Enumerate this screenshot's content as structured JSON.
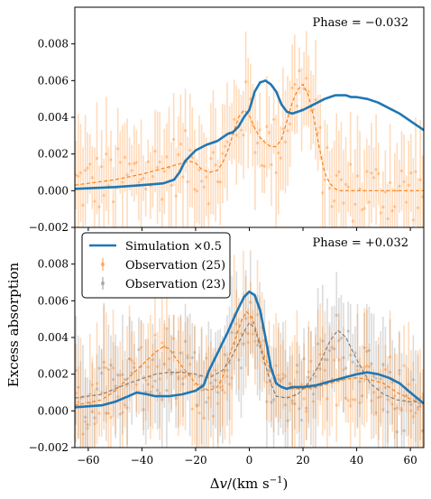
{
  "chart_data": [
    {
      "type": "line",
      "annotation": "Phase = −0.032",
      "xlim": [
        -65,
        65
      ],
      "ylim": [
        -0.002,
        0.01
      ],
      "yticks": [
        "−0.002",
        "0.000",
        "0.002",
        "0.004",
        "0.006",
        "0.008"
      ],
      "ytick_values": [
        -0.002,
        0.0,
        0.002,
        0.004,
        0.006,
        0.008
      ],
      "series": [
        {
          "color": "#1f77b4",
          "style": "solid",
          "x": [
            -65,
            -50,
            -40,
            -32,
            -28,
            -26,
            -24,
            -20,
            -16,
            -12,
            -8,
            -6,
            -4,
            -2,
            0,
            2,
            4,
            6,
            8,
            10,
            12,
            14,
            16,
            18,
            20,
            24,
            28,
            30,
            32,
            34,
            36,
            38,
            40,
            44,
            48,
            52,
            56,
            60,
            65
          ],
          "values": [
            0.0001,
            0.0002,
            0.0003,
            0.0004,
            0.0006,
            0.001,
            0.0016,
            0.0022,
            0.0025,
            0.0027,
            0.0031,
            0.0032,
            0.0035,
            0.004,
            0.0044,
            0.0054,
            0.0059,
            0.006,
            0.0058,
            0.0054,
            0.0047,
            0.0043,
            0.0042,
            0.0043,
            0.0044,
            0.0047,
            0.005,
            0.0051,
            0.0052,
            0.0052,
            0.0052,
            0.0051,
            0.0051,
            0.005,
            0.0048,
            0.0045,
            0.0042,
            0.0038,
            0.0033
          ]
        },
        {
          "color": "#ff7f0e",
          "style": "dashed",
          "x": [
            -65,
            -50,
            -40,
            -30,
            -25,
            -22,
            -20,
            -18,
            -15,
            -12,
            -10,
            -8,
            -6,
            -4,
            -2,
            0,
            2,
            4,
            6,
            8,
            10,
            12,
            14,
            16,
            18,
            20,
            22,
            24,
            26,
            28,
            30,
            32,
            34,
            36,
            40,
            45,
            50,
            65
          ],
          "values": [
            0.0003,
            0.0006,
            0.0009,
            0.0013,
            0.0015,
            0.0016,
            0.0015,
            0.0012,
            0.001,
            0.0011,
            0.0015,
            0.0022,
            0.0031,
            0.004,
            0.0044,
            0.0041,
            0.0034,
            0.0029,
            0.0026,
            0.0024,
            0.0024,
            0.0028,
            0.0038,
            0.0048,
            0.0055,
            0.0058,
            0.0052,
            0.004,
            0.0024,
            0.001,
            0.0004,
            0.0001,
            0.0,
            0.0,
            0.0,
            0.0,
            0.0,
            0.0
          ]
        }
      ]
    },
    {
      "type": "line",
      "annotation": "Phase = +0.032",
      "xlim": [
        -65,
        65
      ],
      "ylim": [
        -0.002,
        0.01
      ],
      "yticks": [
        "−0.002",
        "0.000",
        "0.002",
        "0.004",
        "0.006",
        "0.008"
      ],
      "ytick_values": [
        -0.002,
        0.0,
        0.002,
        0.004,
        0.006,
        0.008
      ],
      "xticks": [
        "−60",
        "−40",
        "−20",
        "0",
        "20",
        "40",
        "60"
      ],
      "xtick_values": [
        -60,
        -40,
        -20,
        0,
        20,
        40,
        60
      ],
      "xlabel": "Δv/(km s⁻¹)",
      "legend": {
        "placement": "top-left",
        "entries": [
          "Simulation ×0.5",
          "Observation (25)",
          "Observation (23)"
        ]
      },
      "series": [
        {
          "name": "Simulation ×0.5",
          "color": "#1f77b4",
          "style": "solid",
          "x": [
            -65,
            -55,
            -50,
            -45,
            -42,
            -38,
            -35,
            -30,
            -25,
            -20,
            -17,
            -15,
            -12,
            -10,
            -8,
            -5,
            -2,
            0,
            2,
            4,
            6,
            8,
            10,
            12,
            14,
            16,
            18,
            20,
            25,
            30,
            35,
            40,
            44,
            48,
            52,
            56,
            60,
            65
          ],
          "values": [
            0.0002,
            0.0003,
            0.0005,
            0.0008,
            0.001,
            0.0009,
            0.0008,
            0.0008,
            0.0009,
            0.0011,
            0.0014,
            0.0022,
            0.0031,
            0.0037,
            0.0043,
            0.0053,
            0.0062,
            0.0065,
            0.0063,
            0.0055,
            0.004,
            0.0024,
            0.0015,
            0.0013,
            0.0012,
            0.0013,
            0.0013,
            0.0013,
            0.0014,
            0.0016,
            0.0018,
            0.002,
            0.0021,
            0.002,
            0.0018,
            0.0015,
            0.001,
            0.0004
          ]
        },
        {
          "name": "Observation (25)",
          "color": "#ff7f0e",
          "style": "dashed",
          "x": [
            -65,
            -55,
            -50,
            -45,
            -40,
            -35,
            -32,
            -30,
            -28,
            -25,
            -20,
            -15,
            -12,
            -10,
            -8,
            -5,
            -3,
            -1,
            1,
            3,
            5,
            8,
            10,
            12,
            15,
            20,
            25,
            30,
            35,
            40,
            45,
            50,
            55,
            65
          ],
          "values": [
            0.0003,
            0.0006,
            0.0011,
            0.0018,
            0.0025,
            0.0032,
            0.0035,
            0.0034,
            0.003,
            0.0024,
            0.0015,
            0.0011,
            0.0013,
            0.0018,
            0.0028,
            0.004,
            0.0049,
            0.0054,
            0.0051,
            0.0042,
            0.0032,
            0.0022,
            0.0015,
            0.0013,
            0.0012,
            0.0012,
            0.0013,
            0.0015,
            0.0017,
            0.0018,
            0.0017,
            0.0015,
            0.001,
            0.0003
          ]
        },
        {
          "name": "Observation (23)",
          "color": "#7f7f7f",
          "style": "dashed",
          "x": [
            -65,
            -55,
            -45,
            -35,
            -30,
            -25,
            -20,
            -15,
            -10,
            -7,
            -4,
            -2,
            0,
            2,
            4,
            6,
            8,
            10,
            14,
            18,
            22,
            26,
            30,
            33,
            36,
            40,
            45,
            50,
            55,
            60,
            65
          ],
          "values": [
            0.0007,
            0.0009,
            0.0015,
            0.002,
            0.0021,
            0.0021,
            0.002,
            0.0018,
            0.0022,
            0.0028,
            0.0037,
            0.0043,
            0.0048,
            0.0045,
            0.0035,
            0.0025,
            0.0015,
            0.0008,
            0.0007,
            0.0009,
            0.0015,
            0.0025,
            0.0038,
            0.0044,
            0.004,
            0.0028,
            0.0015,
            0.0009,
            0.0006,
            0.0005,
            0.0005
          ]
        }
      ]
    }
  ],
  "shared": {
    "ylabel": "Excess absorption"
  }
}
